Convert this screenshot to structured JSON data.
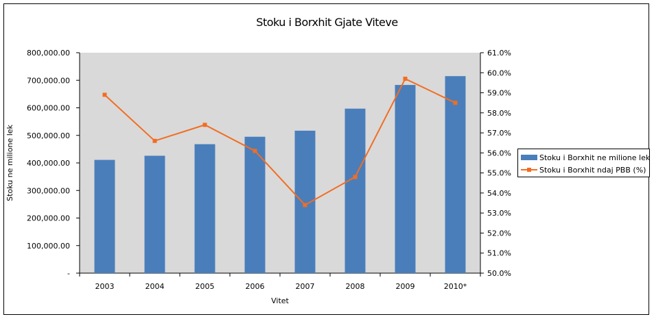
{
  "chart_data": {
    "type": "bar",
    "title": "Stoku i Borxhit Gjate Viteve",
    "xlabel": "Vitet",
    "ylabel": "Stoku ne milione lek",
    "categories": [
      "2003",
      "2004",
      "2005",
      "2006",
      "2007",
      "2008",
      "2009",
      "2010*"
    ],
    "ylim": [
      0,
      800000
    ],
    "y_ticks": [
      "-",
      "100,000.00",
      "200,000.00",
      "300,000.00",
      "400,000.00",
      "500,000.00",
      "600,000.00",
      "700,000.00",
      "800,000.00"
    ],
    "y2lim": [
      50.0,
      61.0
    ],
    "y2_ticks": [
      "50.0%",
      "51.0%",
      "52.0%",
      "53.0%",
      "54.0%",
      "55.0%",
      "56.0%",
      "57.0%",
      "58.0%",
      "59.0%",
      "60.0%",
      "61.0%"
    ],
    "series": [
      {
        "name": "Stoku i Borxhit ne milione lek",
        "type": "bar",
        "axis": "left",
        "color": "#4a7ebb",
        "values": [
          411000,
          426000,
          468000,
          495000,
          517000,
          597000,
          683000,
          715000
        ]
      },
      {
        "name": "Stoku i Borxhit ndaj PBB (%)",
        "type": "line",
        "axis": "right",
        "color": "#f26d21",
        "values": [
          58.9,
          56.6,
          57.4,
          56.1,
          53.4,
          54.8,
          59.7,
          58.5
        ]
      }
    ],
    "grid": false,
    "legend": "right",
    "plot_background": "#d9d9d9"
  }
}
